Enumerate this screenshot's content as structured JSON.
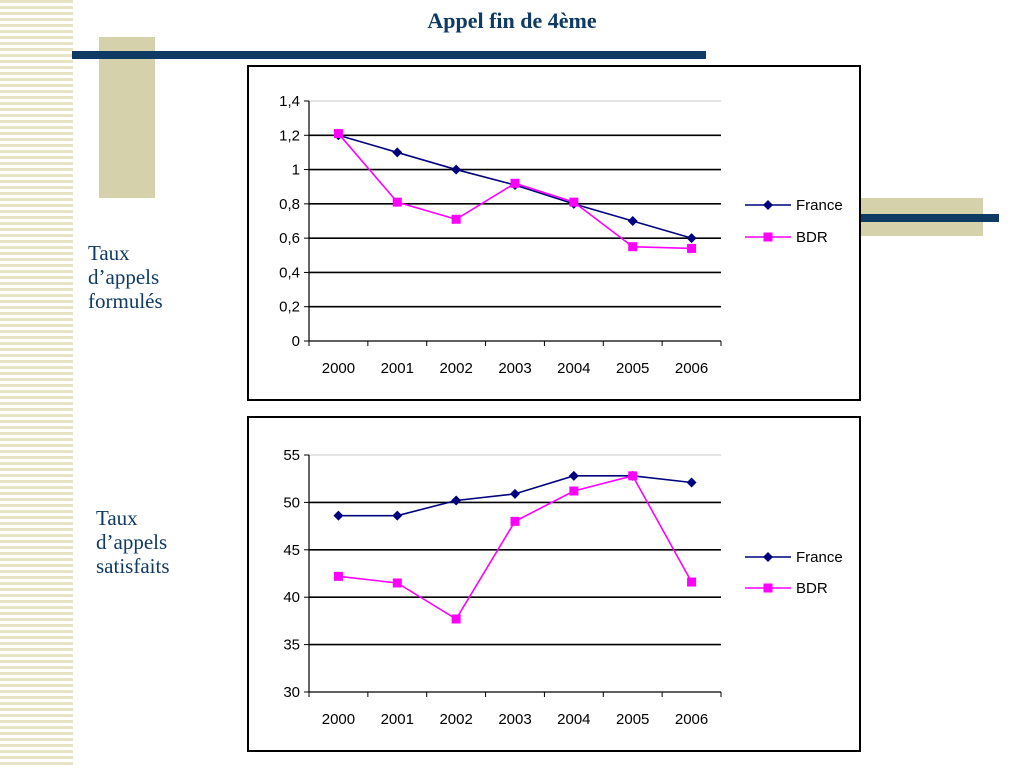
{
  "slide": {
    "title": "Appel fin de 4ème"
  },
  "labels": {
    "formules": [
      "Taux",
      "d’appels",
      "formulés"
    ],
    "satisfaits": [
      "Taux",
      "d’appels",
      "satisfaits"
    ]
  },
  "colors": {
    "france": "#00007f",
    "bdr": "#ff00ff",
    "accent_bar": "#0e3a63",
    "accent_block": "#d4d1ab"
  },
  "chart_data": [
    {
      "type": "line",
      "categories": [
        "2000",
        "2001",
        "2002",
        "2003",
        "2004",
        "2005",
        "2006"
      ],
      "series": [
        {
          "name": "France",
          "marker": "diamond",
          "values": [
            1.2,
            1.1,
            1.0,
            0.91,
            0.8,
            0.7,
            0.6
          ]
        },
        {
          "name": "BDR",
          "marker": "square",
          "values": [
            1.21,
            0.81,
            0.71,
            0.92,
            0.81,
            0.55,
            0.54
          ]
        }
      ],
      "ylim": [
        0,
        1.4
      ],
      "yticks": [
        "0",
        "0,2",
        "0,4",
        "0,6",
        "0,8",
        "1",
        "1,2",
        "1,4"
      ],
      "grid": true,
      "legend": "right"
    },
    {
      "type": "line",
      "categories": [
        "2000",
        "2001",
        "2002",
        "2003",
        "2004",
        "2005",
        "2006"
      ],
      "series": [
        {
          "name": "France",
          "marker": "diamond",
          "values": [
            48.6,
            48.6,
            50.2,
            50.9,
            52.8,
            52.8,
            52.1
          ]
        },
        {
          "name": "BDR",
          "marker": "square",
          "values": [
            42.2,
            41.5,
            37.7,
            48.0,
            51.2,
            52.8,
            41.6
          ]
        }
      ],
      "ylim": [
        30,
        55
      ],
      "yticks": [
        "30",
        "35",
        "40",
        "45",
        "50",
        "55"
      ],
      "grid": true,
      "legend": "right"
    }
  ]
}
